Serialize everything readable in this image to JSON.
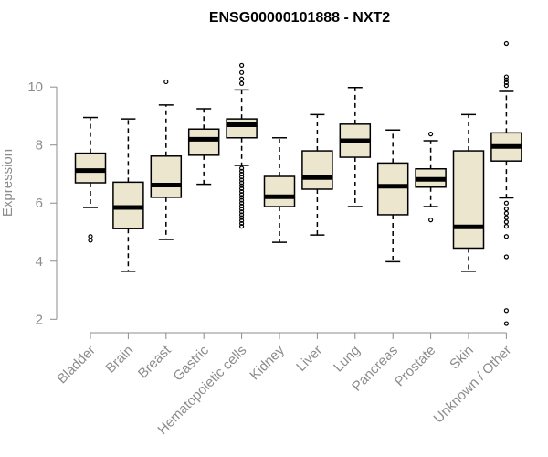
{
  "chart_data": {
    "type": "boxplot",
    "title": "ENSG00000101888 - NXT2",
    "xlabel": "",
    "ylabel": "Expression",
    "ylim": [
      1.6,
      11.8
    ],
    "yticks": [
      2,
      4,
      6,
      8,
      10
    ],
    "grid": false,
    "box_fill": "#ede6cf",
    "axis_color": "#8c8c8c",
    "categories": [
      "Bladder",
      "Brain",
      "Breast",
      "Gastric",
      "Hematopoietic cells",
      "Kidney",
      "Liver",
      "Lung",
      "Pancreas",
      "Prostate",
      "Skin",
      "Unknown / Other"
    ],
    "boxes": [
      {
        "whislo": 5.85,
        "q1": 6.7,
        "med": 7.12,
        "q3": 7.72,
        "whishi": 8.95,
        "outliers": [
          4.72,
          4.85
        ]
      },
      {
        "whislo": 3.65,
        "q1": 5.12,
        "med": 5.85,
        "q3": 6.72,
        "whishi": 8.9,
        "outliers": []
      },
      {
        "whislo": 4.75,
        "q1": 6.2,
        "med": 6.62,
        "q3": 7.62,
        "whishi": 9.38,
        "outliers": [
          10.18
        ]
      },
      {
        "whislo": 6.65,
        "q1": 7.65,
        "med": 8.2,
        "q3": 8.55,
        "whishi": 9.25,
        "outliers": []
      },
      {
        "whislo": 7.3,
        "q1": 8.25,
        "med": 8.7,
        "q3": 8.9,
        "whishi": 9.9,
        "outliers": [
          10.75,
          10.5,
          10.28,
          10.12,
          7.2,
          7.1,
          7.0,
          6.9,
          6.8,
          6.7,
          6.6,
          6.5,
          6.4,
          6.3,
          6.2,
          6.1,
          6.0,
          5.9,
          5.8,
          5.7,
          5.6,
          5.5,
          5.4,
          5.3,
          5.2
        ]
      },
      {
        "whislo": 4.65,
        "q1": 5.88,
        "med": 6.22,
        "q3": 6.92,
        "whishi": 8.25,
        "outliers": []
      },
      {
        "whislo": 4.9,
        "q1": 6.48,
        "med": 6.88,
        "q3": 7.8,
        "whishi": 9.05,
        "outliers": []
      },
      {
        "whislo": 5.88,
        "q1": 7.58,
        "med": 8.15,
        "q3": 8.72,
        "whishi": 9.98,
        "outliers": []
      },
      {
        "whislo": 3.98,
        "q1": 5.6,
        "med": 6.58,
        "q3": 7.38,
        "whishi": 8.52,
        "outliers": []
      },
      {
        "whislo": 5.88,
        "q1": 6.55,
        "med": 6.82,
        "q3": 7.18,
        "whishi": 8.15,
        "outliers": [
          5.42,
          8.38
        ]
      },
      {
        "whislo": 3.65,
        "q1": 4.45,
        "med": 5.18,
        "q3": 7.8,
        "whishi": 9.05,
        "outliers": []
      },
      {
        "whislo": 6.18,
        "q1": 7.45,
        "med": 7.95,
        "q3": 8.42,
        "whishi": 9.85,
        "outliers": [
          11.5,
          10.35,
          10.25,
          10.15,
          10.05,
          6.0,
          5.8,
          5.65,
          5.5,
          5.35,
          5.2,
          4.85,
          4.15,
          2.3,
          1.85
        ]
      }
    ]
  }
}
